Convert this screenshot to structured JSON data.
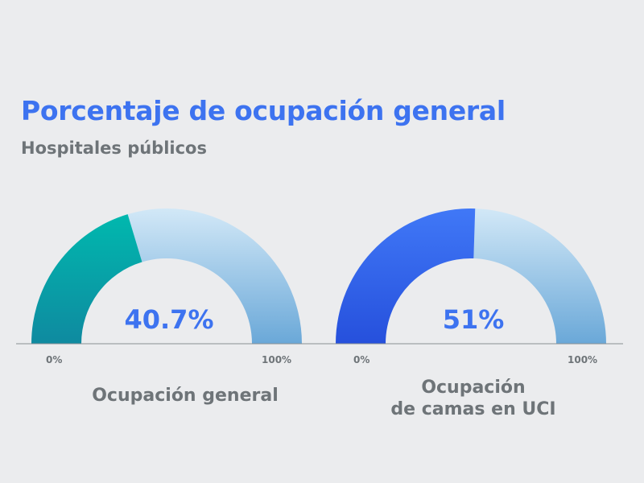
{
  "title": "Porcentaje de ocupación general",
  "subtitle": "Hospitales públicos",
  "chart_data": [
    {
      "type": "gauge",
      "value": 40.7,
      "value_label": "40.7%",
      "min_label": "0%",
      "max_label": "100%",
      "range": [
        0,
        100
      ],
      "label_lines": [
        "Ocupación general"
      ],
      "colors": {
        "fill_start": "#00b8ae",
        "fill_end": "#0f8aa0",
        "rest_start": "#d2e8f7",
        "rest_end": "#6aa8d8"
      }
    },
    {
      "type": "gauge",
      "value": 51,
      "value_label": "51%",
      "min_label": "0%",
      "max_label": "100%",
      "range": [
        0,
        100
      ],
      "label_lines": [
        "Ocupación",
        "de camas en UCI"
      ],
      "colors": {
        "fill_start": "#4078f7",
        "fill_end": "#2650dc",
        "rest_start": "#d2e8f7",
        "rest_end": "#6aa8d8"
      }
    }
  ]
}
